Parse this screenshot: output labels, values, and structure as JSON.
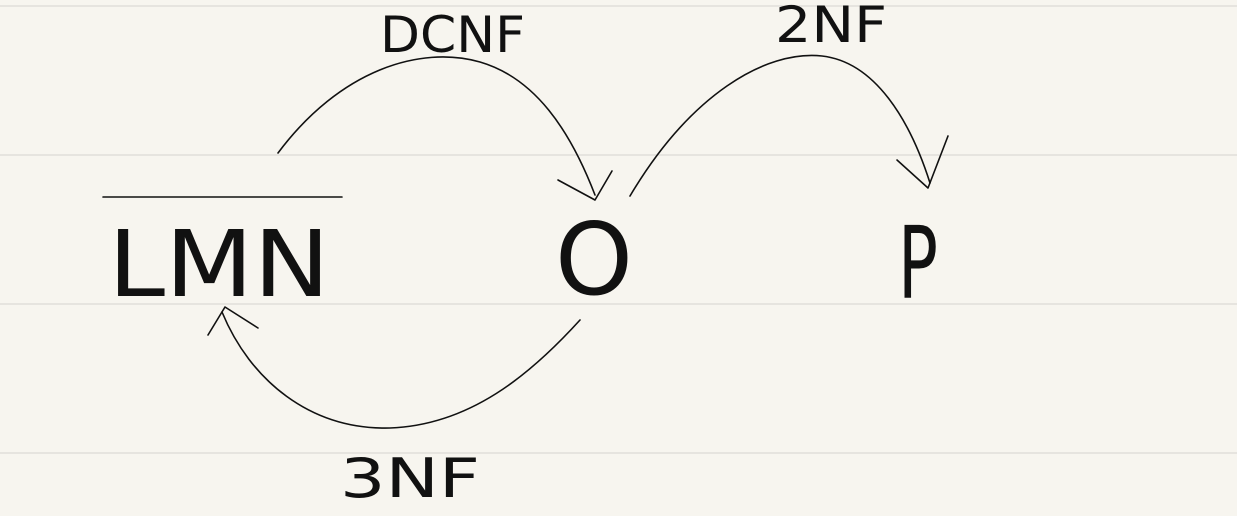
{
  "diagram": {
    "nodes": {
      "lmn": {
        "label": "LMN"
      },
      "o": {
        "label": "O"
      },
      "p": {
        "label": "P"
      }
    },
    "edges": {
      "lmn_to_o": {
        "label": "DCNF"
      },
      "o_to_p": {
        "label": "2NF"
      },
      "o_to_lmn": {
        "label": "3NF"
      }
    }
  },
  "colors": {
    "paper": "#f7f5ef",
    "ruled_lines": "#dcdad5",
    "ink": "#111111"
  }
}
